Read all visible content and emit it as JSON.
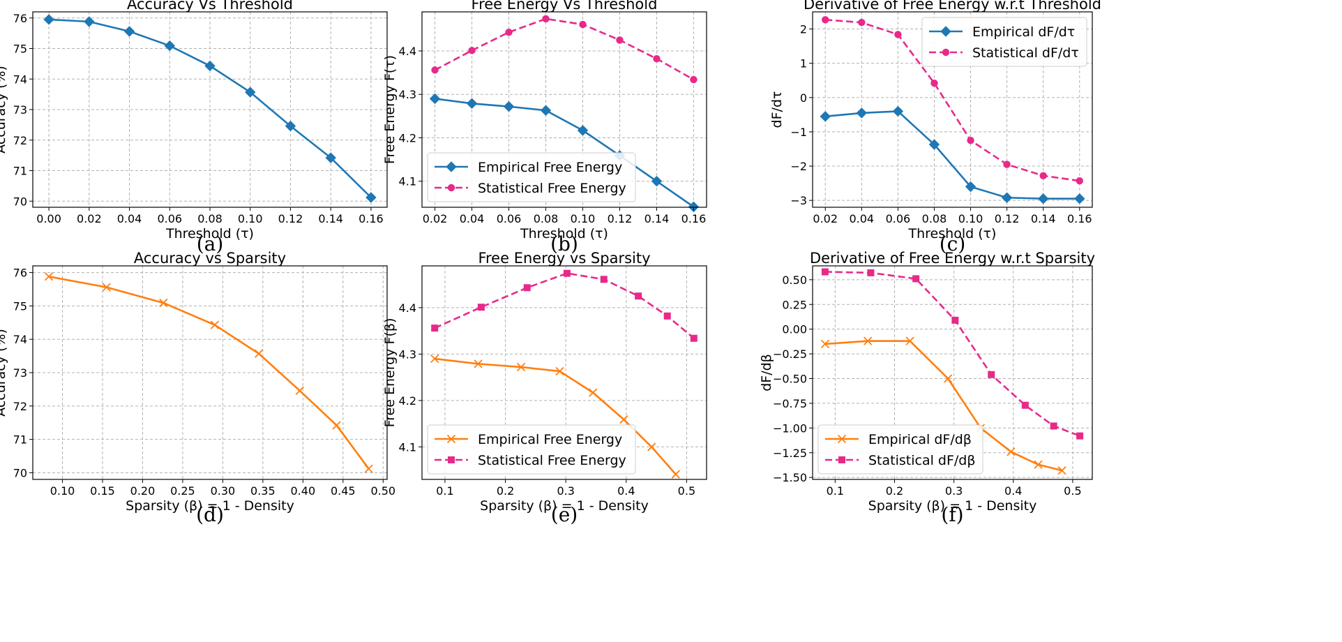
{
  "chart_data": [
    {
      "type": "line",
      "caption": "(a)",
      "title": "Accuracy Vs Threshold",
      "xlabel": "Threshold (τ)",
      "ylabel": "Accuracy (%)",
      "xlim": [
        -0.008,
        0.168
      ],
      "ylim": [
        69.8,
        76.2
      ],
      "xticks": [
        0.0,
        0.02,
        0.04,
        0.06,
        0.08,
        0.1,
        0.12,
        0.14,
        0.16
      ],
      "xticklabels": [
        "0.00",
        "0.02",
        "0.04",
        "0.06",
        "0.08",
        "0.10",
        "0.12",
        "0.14",
        "0.16"
      ],
      "yticks": [
        70,
        71,
        72,
        73,
        74,
        75,
        76
      ],
      "yticklabels": [
        "70",
        "71",
        "72",
        "73",
        "74",
        "75",
        "76"
      ],
      "legend": null,
      "series": [
        {
          "name": "Accuracy",
          "color": "#1f77b4",
          "dash": false,
          "marker": "diamond",
          "x": [
            0.0,
            0.02,
            0.04,
            0.06,
            0.08,
            0.1,
            0.12,
            0.14,
            0.16
          ],
          "y": [
            75.95,
            75.88,
            75.56,
            75.09,
            74.43,
            73.57,
            72.46,
            71.42,
            70.12
          ]
        }
      ]
    },
    {
      "type": "line",
      "caption": "(b)",
      "title": "Free Energy Vs Threshold",
      "xlabel": "Threshold (τ)",
      "ylabel": "Free Energy F(τ)",
      "xlim": [
        0.013,
        0.167
      ],
      "ylim": [
        4.04,
        4.49
      ],
      "xticks": [
        0.02,
        0.04,
        0.06,
        0.08,
        0.1,
        0.12,
        0.14,
        0.16
      ],
      "xticklabels": [
        "0.02",
        "0.04",
        "0.06",
        "0.08",
        "0.10",
        "0.12",
        "0.14",
        "0.16"
      ],
      "yticks": [
        4.1,
        4.2,
        4.3,
        4.4
      ],
      "yticklabels": [
        "4.1",
        "4.2",
        "4.3",
        "4.4"
      ],
      "legend": "bottom-left",
      "series": [
        {
          "name": "Empirical Free Energy",
          "color": "#1f77b4",
          "dash": false,
          "marker": "diamond",
          "x": [
            0.02,
            0.04,
            0.06,
            0.08,
            0.1,
            0.12,
            0.14,
            0.16
          ],
          "y": [
            4.29,
            4.279,
            4.272,
            4.263,
            4.217,
            4.159,
            4.1,
            4.041
          ]
        },
        {
          "name": "Statistical Free Energy",
          "color": "#e7298a",
          "dash": true,
          "marker": "circle",
          "x": [
            0.02,
            0.04,
            0.06,
            0.08,
            0.1,
            0.12,
            0.14,
            0.16
          ],
          "y": [
            4.356,
            4.401,
            4.443,
            4.474,
            4.461,
            4.425,
            4.382,
            4.334
          ]
        }
      ]
    },
    {
      "type": "line",
      "caption": "(c)",
      "title": "Derivative of Free Energy w.r.t Threshold",
      "xlabel": "Threshold (τ)",
      "ylabel": "dF/dτ",
      "xlim": [
        0.013,
        0.167
      ],
      "ylim": [
        -3.2,
        2.5
      ],
      "xticks": [
        0.02,
        0.04,
        0.06,
        0.08,
        0.1,
        0.12,
        0.14,
        0.16
      ],
      "xticklabels": [
        "0.02",
        "0.04",
        "0.06",
        "0.08",
        "0.10",
        "0.12",
        "0.14",
        "0.16"
      ],
      "yticks": [
        -3,
        -2,
        -1,
        0,
        1,
        2
      ],
      "yticklabels": [
        "−3",
        "−2",
        "−1",
        "0",
        "1",
        "2"
      ],
      "legend": "top-right",
      "series": [
        {
          "name": "Empirical dF/dτ",
          "color": "#1f77b4",
          "dash": false,
          "marker": "diamond",
          "x": [
            0.02,
            0.04,
            0.06,
            0.08,
            0.1,
            0.12,
            0.14,
            0.16
          ],
          "y": [
            -0.55,
            -0.45,
            -0.4,
            -1.37,
            -2.6,
            -2.92,
            -2.95,
            -2.95
          ]
        },
        {
          "name": "Statistical dF/dτ",
          "color": "#e7298a",
          "dash": true,
          "marker": "circle",
          "x": [
            0.02,
            0.04,
            0.06,
            0.08,
            0.1,
            0.12,
            0.14,
            0.16
          ],
          "y": [
            2.27,
            2.19,
            1.84,
            0.42,
            -1.25,
            -1.95,
            -2.28,
            -2.43
          ]
        }
      ]
    },
    {
      "type": "line",
      "caption": "(d)",
      "title": "Accuracy vs Sparsity",
      "xlabel": "Sparsity (β) = 1 - Density",
      "ylabel": "Accuracy (%)",
      "xlim": [
        0.063,
        0.505
      ],
      "ylim": [
        69.8,
        76.2
      ],
      "xticks": [
        0.1,
        0.15,
        0.2,
        0.25,
        0.3,
        0.35,
        0.4,
        0.45,
        0.5
      ],
      "xticklabels": [
        "0.10",
        "0.15",
        "0.20",
        "0.25",
        "0.30",
        "0.35",
        "0.40",
        "0.45",
        "0.50"
      ],
      "yticks": [
        70,
        71,
        72,
        73,
        74,
        75,
        76
      ],
      "yticklabels": [
        "70",
        "71",
        "72",
        "73",
        "74",
        "75",
        "76"
      ],
      "legend": null,
      "series": [
        {
          "name": "Accuracy",
          "color": "#ff7f0e",
          "dash": false,
          "marker": "x",
          "x": [
            0.083,
            0.155,
            0.226,
            0.29,
            0.345,
            0.396,
            0.442,
            0.482
          ],
          "y": [
            75.88,
            75.56,
            75.09,
            74.43,
            73.57,
            72.46,
            71.42,
            70.12
          ]
        }
      ]
    },
    {
      "type": "line",
      "caption": "(e)",
      "title": "Free Energy vs Sparsity",
      "xlabel": "Sparsity (β) = 1 - Density",
      "ylabel": "Free Energy F(β)",
      "xlim": [
        0.062,
        0.533
      ],
      "ylim": [
        4.03,
        4.49
      ],
      "xticks": [
        0.1,
        0.2,
        0.3,
        0.4,
        0.5
      ],
      "xticklabels": [
        "0.1",
        "0.2",
        "0.3",
        "0.4",
        "0.5"
      ],
      "yticks": [
        4.1,
        4.2,
        4.3,
        4.4
      ],
      "yticklabels": [
        "4.1",
        "4.2",
        "4.3",
        "4.4"
      ],
      "legend": "bottom-left",
      "series": [
        {
          "name": "Empirical Free Energy",
          "color": "#ff7f0e",
          "dash": false,
          "marker": "x",
          "x": [
            0.083,
            0.155,
            0.226,
            0.29,
            0.345,
            0.396,
            0.442,
            0.482
          ],
          "y": [
            4.29,
            4.279,
            4.272,
            4.263,
            4.217,
            4.159,
            4.1,
            4.041
          ]
        },
        {
          "name": "Statistical Free Energy",
          "color": "#e7298a",
          "dash": true,
          "marker": "square",
          "x": [
            0.083,
            0.16,
            0.236,
            0.302,
            0.363,
            0.42,
            0.468,
            0.512
          ],
          "y": [
            4.356,
            4.401,
            4.443,
            4.474,
            4.461,
            4.425,
            4.382,
            4.334
          ]
        }
      ]
    },
    {
      "type": "line",
      "caption": "(f)",
      "title": "Derivative of Free Energy w.r.t Sparsity",
      "xlabel": "Sparsity (β) = 1 - Density",
      "ylabel": "dF/dβ",
      "xlim": [
        0.062,
        0.533
      ],
      "ylim": [
        -1.52,
        0.64
      ],
      "xticks": [
        0.1,
        0.2,
        0.3,
        0.4,
        0.5
      ],
      "xticklabels": [
        "0.1",
        "0.2",
        "0.3",
        "0.4",
        "0.5"
      ],
      "yticks": [
        -1.5,
        -1.25,
        -1.0,
        -0.75,
        -0.5,
        -0.25,
        0.0,
        0.25,
        0.5
      ],
      "yticklabels": [
        "−1.50",
        "−1.25",
        "−1.00",
        "−0.75",
        "−0.50",
        "−0.25",
        "0.00",
        "0.25",
        "0.50"
      ],
      "legend": "bottom-left",
      "series": [
        {
          "name": "Empirical dF/dβ",
          "color": "#ff7f0e",
          "dash": false,
          "marker": "x",
          "x": [
            0.083,
            0.155,
            0.226,
            0.29,
            0.345,
            0.396,
            0.442,
            0.482
          ],
          "y": [
            -0.15,
            -0.12,
            -0.12,
            -0.5,
            -1.0,
            -1.24,
            -1.37,
            -1.43
          ]
        },
        {
          "name": "Statistical dF/dβ",
          "color": "#e7298a",
          "dash": true,
          "marker": "square",
          "x": [
            0.083,
            0.16,
            0.236,
            0.302,
            0.363,
            0.42,
            0.468,
            0.512
          ],
          "y": [
            0.58,
            0.57,
            0.51,
            0.09,
            -0.46,
            -0.77,
            -0.98,
            -1.08
          ]
        }
      ]
    }
  ]
}
